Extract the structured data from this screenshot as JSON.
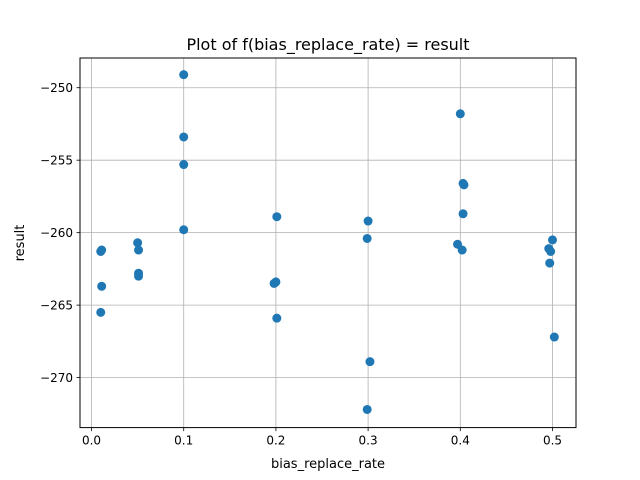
{
  "chart_data": {
    "type": "scatter",
    "title": "Plot of f(bias_replace_rate) = result",
    "xlabel": "bias_replace_rate",
    "ylabel": "result",
    "xlim": [
      -0.0125,
      0.5255
    ],
    "ylim": [
      -273.45,
      -247.95
    ],
    "xticks": [
      0.0,
      0.1,
      0.2,
      0.3,
      0.4,
      0.5
    ],
    "xtick_labels": [
      "0.0",
      "0.1",
      "0.2",
      "0.3",
      "0.4",
      "0.5"
    ],
    "yticks": [
      -270,
      -265,
      -260,
      -255,
      -250
    ],
    "ytick_labels": [
      "−270",
      "−265",
      "−260",
      "−255",
      "−250"
    ],
    "grid": true,
    "marker_color": "#1f77b4",
    "series": [
      {
        "x": [
          0.01,
          0.011,
          0.011,
          0.01,
          0.05,
          0.051,
          0.051,
          0.051,
          0.1,
          0.1,
          0.1,
          0.1,
          0.201,
          0.198,
          0.2,
          0.201,
          0.3,
          0.299,
          0.302,
          0.299,
          0.4,
          0.403,
          0.404,
          0.403,
          0.397,
          0.402,
          0.5,
          0.496,
          0.498,
          0.497,
          0.502
        ],
        "y": [
          -261.3,
          -261.2,
          -263.7,
          -265.5,
          -260.7,
          -261.2,
          -262.8,
          -263.0,
          -249.1,
          -253.4,
          -255.3,
          -259.8,
          -258.9,
          -263.5,
          -263.4,
          -265.9,
          -259.2,
          -260.4,
          -268.9,
          -272.2,
          -251.8,
          -256.6,
          -256.7,
          -258.7,
          -260.8,
          -261.2,
          -260.5,
          -261.1,
          -261.3,
          -262.1,
          -267.2
        ]
      }
    ]
  }
}
